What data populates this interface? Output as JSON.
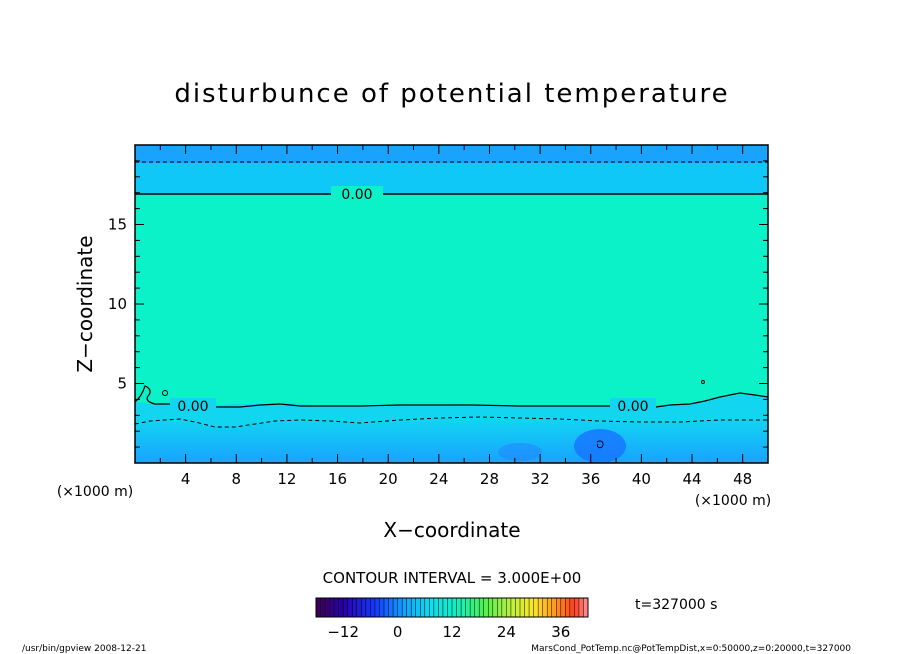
{
  "chart_data": {
    "type": "heatmap",
    "title": "disturbunce of potential temperature",
    "xlabel": "X−coordinate",
    "ylabel": "Z−coordinate",
    "x_unit": "(×1000 m)",
    "y_unit": "(×1000 m)",
    "xlim": [
      0,
      50
    ],
    "ylim": [
      0,
      20
    ],
    "x_ticks": [
      4,
      8,
      12,
      16,
      20,
      24,
      28,
      32,
      36,
      40,
      44,
      48
    ],
    "y_ticks": [
      5,
      10,
      15
    ],
    "contour_labels": [
      "0.00",
      "0.00",
      "0.00"
    ],
    "contour_interval_text": "CONTOUR INTERVAL = 3.000E+00",
    "time_text": "t=327000 s",
    "colorbar": {
      "min": -18,
      "max": 42,
      "ticks": [
        -12,
        0,
        12,
        24,
        36
      ]
    },
    "footer_left": "/usr/bin/gpview   2008-12-21",
    "footer_right": "MarsCond_PotTemp.nc@PotTempDist,x=0:50000,z=0:20000,t=327000",
    "layers": [
      {
        "z_range": [
          19,
          20
        ],
        "value": -4.5
      },
      {
        "z_range": [
          17,
          19
        ],
        "value": -1.5
      },
      {
        "z_range": [
          3.5,
          17
        ],
        "value": 1.5
      },
      {
        "z_range": [
          2.5,
          3.5
        ],
        "value": -1.5
      },
      {
        "z_range": [
          0,
          2.5
        ],
        "value": -4.5
      }
    ]
  }
}
